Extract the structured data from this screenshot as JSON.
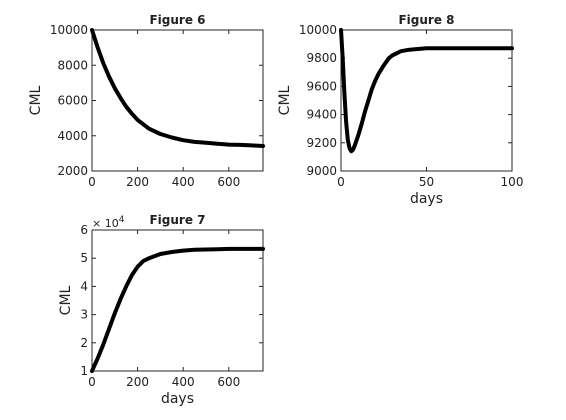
{
  "chart_data": [
    {
      "type": "line",
      "title": "Figure 6",
      "xlabel": "",
      "ylabel": "CML",
      "xlim": [
        0,
        750
      ],
      "ylim": [
        2000,
        10000
      ],
      "xticks": [
        "0",
        "200",
        "400",
        "600"
      ],
      "xtick_values": [
        0,
        200,
        400,
        600
      ],
      "yticks": [
        "2000",
        "4000",
        "6000",
        "8000",
        "10000"
      ],
      "ytick_values": [
        2000,
        4000,
        6000,
        8000,
        10000
      ],
      "exponent_label": "",
      "grid": false,
      "series": [
        {
          "x": [
            0,
            25,
            50,
            75,
            100,
            125,
            150,
            175,
            200,
            250,
            300,
            350,
            400,
            450,
            500,
            550,
            600,
            650,
            700,
            750
          ],
          "y": [
            10000,
            9000,
            8100,
            7350,
            6700,
            6150,
            5650,
            5250,
            4900,
            4400,
            4100,
            3900,
            3750,
            3650,
            3600,
            3550,
            3500,
            3480,
            3450,
            3420
          ]
        }
      ]
    },
    {
      "type": "line",
      "title": "Figure 8",
      "xlabel": "days",
      "ylabel": "CML",
      "xlim": [
        0,
        100
      ],
      "ylim": [
        9000,
        10000
      ],
      "xticks": [
        "0",
        "50",
        "100"
      ],
      "xtick_values": [
        0,
        50,
        100
      ],
      "yticks": [
        "9000",
        "9200",
        "9400",
        "9600",
        "9800",
        "10000"
      ],
      "ytick_values": [
        9000,
        9200,
        9400,
        9600,
        9800,
        10000
      ],
      "exponent_label": "",
      "grid": false,
      "series": [
        {
          "x": [
            0,
            1,
            2,
            3,
            4,
            5,
            6,
            7,
            8,
            10,
            12,
            14,
            16,
            18,
            20,
            22,
            25,
            28,
            30,
            35,
            40,
            45,
            50,
            60,
            70,
            80,
            90,
            100
          ],
          "y": [
            10000,
            9800,
            9550,
            9350,
            9220,
            9160,
            9140,
            9150,
            9180,
            9250,
            9330,
            9420,
            9500,
            9580,
            9640,
            9690,
            9750,
            9800,
            9820,
            9850,
            9860,
            9865,
            9870,
            9870,
            9870,
            9870,
            9870,
            9870
          ]
        }
      ]
    },
    {
      "type": "line",
      "title": "Figure 7",
      "xlabel": "days",
      "ylabel": "CML",
      "xlim": [
        0,
        750
      ],
      "ylim": [
        1,
        6
      ],
      "xticks": [
        "0",
        "200",
        "400",
        "600"
      ],
      "xtick_values": [
        0,
        200,
        400,
        600
      ],
      "yticks": [
        "1",
        "2",
        "3",
        "4",
        "5",
        "6"
      ],
      "ytick_values": [
        1,
        2,
        3,
        4,
        5,
        6
      ],
      "exponent_label": "× 10",
      "exponent_power": "4",
      "grid": false,
      "series": [
        {
          "x": [
            0,
            25,
            50,
            75,
            100,
            125,
            150,
            175,
            200,
            225,
            250,
            300,
            350,
            400,
            450,
            500,
            550,
            600,
            650,
            700,
            750
          ],
          "y": [
            1.0,
            1.45,
            1.95,
            2.5,
            3.05,
            3.55,
            4.0,
            4.4,
            4.7,
            4.9,
            5.0,
            5.15,
            5.22,
            5.27,
            5.3,
            5.31,
            5.32,
            5.33,
            5.33,
            5.33,
            5.33
          ]
        }
      ]
    }
  ]
}
